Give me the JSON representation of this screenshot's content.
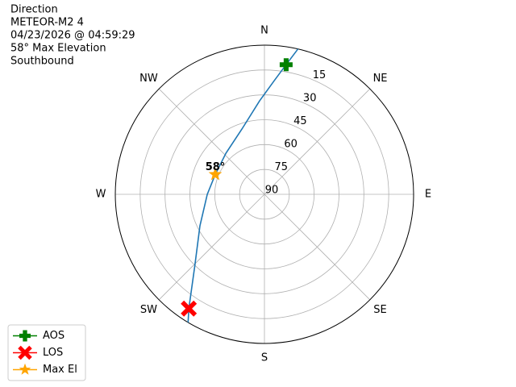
{
  "chart_data": {
    "type": "polar",
    "text_lines": [
      "Direction",
      "METEOR-M2 4",
      "04/23/2026 @ 04:59:29",
      "58° Max Elevation",
      "Southbound"
    ],
    "theta_zero": "N",
    "theta_direction": "clockwise",
    "rlim": [
      90,
      0
    ],
    "rticks": [
      15,
      30,
      45,
      60,
      75,
      90
    ],
    "thetaticks": [
      {
        "value": 0,
        "label": "N"
      },
      {
        "value": 45,
        "label": "NE"
      },
      {
        "value": 90,
        "label": "E"
      },
      {
        "value": 135,
        "label": "SE"
      },
      {
        "value": 180,
        "label": "S"
      },
      {
        "value": 225,
        "label": "SW"
      },
      {
        "value": 270,
        "label": "W"
      },
      {
        "value": 315,
        "label": "NW"
      }
    ],
    "grid": true,
    "track": {
      "color": "#1f77b4",
      "theta": [
        13,
        9.5,
        5,
        357,
        341,
        317,
        292,
        270,
        244,
        224,
        213.5,
        210.8
      ],
      "r": [
        0,
        10.7,
        21,
        33.6,
        48.3,
        56,
        58,
        55.5,
        46.7,
        29.4,
        7.3,
        0
      ]
    },
    "series": [
      {
        "name": "AOS",
        "color": "#008000",
        "marker": "plus",
        "theta": [
          9.5
        ],
        "r": [
          10.7
        ]
      },
      {
        "name": "LOS",
        "color": "#ff0000",
        "marker": "x",
        "theta": [
          213.5
        ],
        "r": [
          7.3
        ]
      },
      {
        "name": "Max El",
        "color": "#ffa500",
        "marker": "star",
        "theta": [
          292
        ],
        "r": [
          58
        ]
      }
    ],
    "annotations": [
      {
        "text": "58°"
      }
    ],
    "legend": "lower left"
  }
}
